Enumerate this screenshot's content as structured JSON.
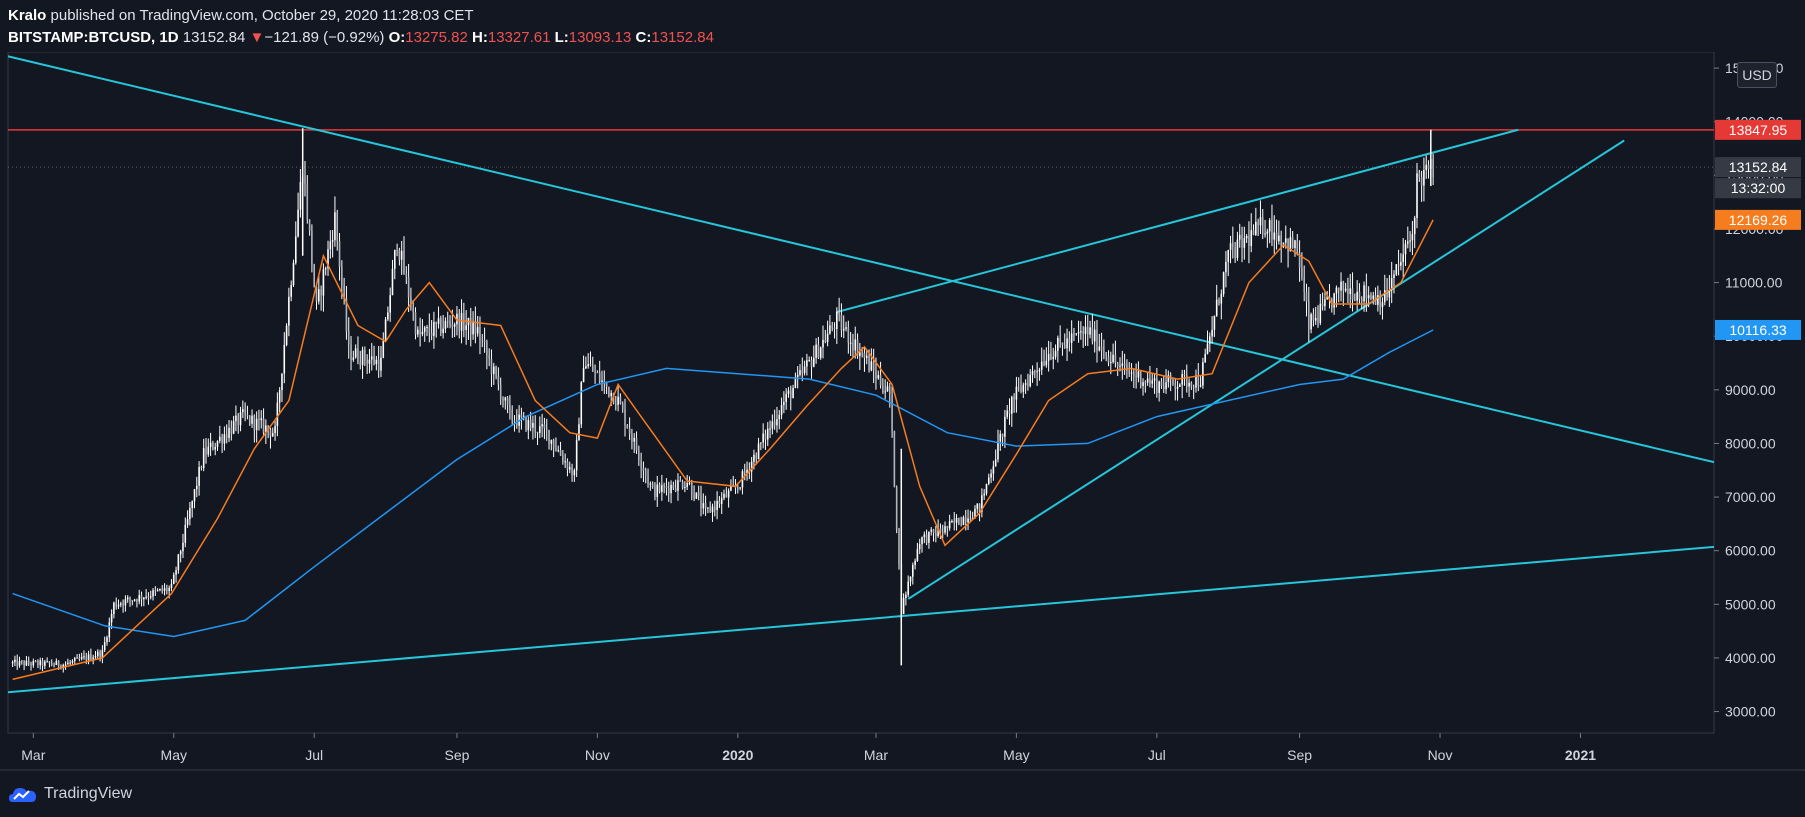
{
  "header": {
    "author": "Kralo",
    "published_text": "published on TradingView.com, October 29, 2020 11:28:03 CET",
    "symbol": "BITSTAMP:BTCUSD, 1D",
    "last": "13152.84",
    "change_arrow": "▼",
    "change": "−121.89 (−0.92%)",
    "ohlc": {
      "o_label": "O:",
      "o": "13275.82",
      "h_label": "H:",
      "h": "13327.61",
      "l_label": "L:",
      "l": "13093.13",
      "c_label": "C:",
      "c": "13152.84"
    }
  },
  "currency_button": "USD",
  "footer": {
    "brand": "TradingView"
  },
  "colors": {
    "background": "#131722",
    "candle": "#ffffff",
    "ma_short": "#f57c1f",
    "ma_long": "#2196f3",
    "trendline": "#26c6da",
    "resistance": "#e53935",
    "grid_text": "#d1d4dc"
  },
  "chart_data": {
    "type": "line",
    "ylim": [
      2600,
      15300
    ],
    "y_ticks": [
      "3000.00",
      "4000.00",
      "5000.00",
      "6000.00",
      "7000.00",
      "8000.00",
      "9000.00",
      "10000.00",
      "11000.00",
      "12000.00",
      "13000.00",
      "14000.00",
      "15000.00"
    ],
    "x_ticks": [
      {
        "label": "Mar",
        "date": "2019-03-01"
      },
      {
        "label": "May",
        "date": "2019-05-01"
      },
      {
        "label": "Jul",
        "date": "2019-07-01"
      },
      {
        "label": "Sep",
        "date": "2019-09-01"
      },
      {
        "label": "Nov",
        "date": "2019-11-01"
      },
      {
        "label": "2020",
        "date": "2020-01-01"
      },
      {
        "label": "Mar",
        "date": "2020-03-01"
      },
      {
        "label": "May",
        "date": "2020-05-01"
      },
      {
        "label": "Jul",
        "date": "2020-07-01"
      },
      {
        "label": "Sep",
        "date": "2020-09-01"
      },
      {
        "label": "Nov",
        "date": "2020-11-01"
      },
      {
        "label": "2021",
        "date": "2021-01-01"
      }
    ],
    "price_keypoints": [
      [
        "2019-02-20",
        3900
      ],
      [
        "2019-03-15",
        3880
      ],
      [
        "2019-03-31",
        4100
      ],
      [
        "2019-04-05",
        5000
      ],
      [
        "2019-04-30",
        5300
      ],
      [
        "2019-05-14",
        7800
      ],
      [
        "2019-05-31",
        8500
      ],
      [
        "2019-06-14",
        8200
      ],
      [
        "2019-06-26",
        13200
      ],
      [
        "2019-07-02",
        10500
      ],
      [
        "2019-07-10",
        12200
      ],
      [
        "2019-07-16",
        9700
      ],
      [
        "2019-07-30",
        9500
      ],
      [
        "2019-08-06",
        11800
      ],
      [
        "2019-08-15",
        10000
      ],
      [
        "2019-09-01",
        10300
      ],
      [
        "2019-09-10",
        10100
      ],
      [
        "2019-09-24",
        8500
      ],
      [
        "2019-10-10",
        8200
      ],
      [
        "2019-10-22",
        7400
      ],
      [
        "2019-10-26",
        9550
      ],
      [
        "2019-11-10",
        8800
      ],
      [
        "2019-11-25",
        7100
      ],
      [
        "2019-12-10",
        7300
      ],
      [
        "2019-12-18",
        6700
      ],
      [
        "2020-01-01",
        7200
      ],
      [
        "2020-01-20",
        8700
      ],
      [
        "2020-02-13",
        10300
      ],
      [
        "2020-02-25",
        9600
      ],
      [
        "2020-03-07",
        8900
      ],
      [
        "2020-03-12",
        4900
      ],
      [
        "2020-03-20",
        6200
      ],
      [
        "2020-03-31",
        6400
      ],
      [
        "2020-04-15",
        6800
      ],
      [
        "2020-04-29",
        8800
      ],
      [
        "2020-05-15",
        9700
      ],
      [
        "2020-06-01",
        10100
      ],
      [
        "2020-06-15",
        9400
      ],
      [
        "2020-07-01",
        9100
      ],
      [
        "2020-07-20",
        9200
      ],
      [
        "2020-08-01",
        11500
      ],
      [
        "2020-08-17",
        12100
      ],
      [
        "2020-08-31",
        11600
      ],
      [
        "2020-09-05",
        10200
      ],
      [
        "2020-09-20",
        10900
      ],
      [
        "2020-10-08",
        10700
      ],
      [
        "2020-10-20",
        11900
      ],
      [
        "2020-10-22",
        12900
      ],
      [
        "2020-10-29",
        13152
      ]
    ],
    "wicks": [
      {
        "date": "2019-06-26",
        "high": 13880,
        "low": 11500
      },
      {
        "date": "2020-03-12",
        "high": 7900,
        "low": 3860
      },
      {
        "date": "2020-10-28",
        "high": 13850,
        "low": 12800
      }
    ],
    "ma_short": [
      [
        "2019-02-20",
        3600
      ],
      [
        "2019-03-31",
        4000
      ],
      [
        "2019-04-30",
        5200
      ],
      [
        "2019-05-20",
        6600
      ],
      [
        "2019-06-05",
        7900
      ],
      [
        "2019-06-20",
        8800
      ],
      [
        "2019-07-05",
        11500
      ],
      [
        "2019-07-20",
        10200
      ],
      [
        "2019-08-01",
        9900
      ],
      [
        "2019-08-10",
        10500
      ],
      [
        "2019-08-20",
        11000
      ],
      [
        "2019-09-01",
        10300
      ],
      [
        "2019-09-20",
        10200
      ],
      [
        "2019-10-05",
        8800
      ],
      [
        "2019-10-20",
        8200
      ],
      [
        "2019-11-01",
        8100
      ],
      [
        "2019-11-10",
        9100
      ],
      [
        "2019-11-25",
        8200
      ],
      [
        "2019-12-10",
        7300
      ],
      [
        "2019-12-31",
        7200
      ],
      [
        "2020-01-15",
        7900
      ],
      [
        "2020-01-31",
        8700
      ],
      [
        "2020-02-15",
        9400
      ],
      [
        "2020-02-25",
        9800
      ],
      [
        "2020-03-08",
        9100
      ],
      [
        "2020-03-20",
        7200
      ],
      [
        "2020-03-31",
        6100
      ],
      [
        "2020-04-15",
        6700
      ],
      [
        "2020-05-01",
        7800
      ],
      [
        "2020-05-15",
        8800
      ],
      [
        "2020-06-01",
        9300
      ],
      [
        "2020-06-20",
        9400
      ],
      [
        "2020-07-10",
        9200
      ],
      [
        "2020-07-25",
        9300
      ],
      [
        "2020-08-10",
        11000
      ],
      [
        "2020-08-25",
        11700
      ],
      [
        "2020-09-05",
        11400
      ],
      [
        "2020-09-15",
        10600
      ],
      [
        "2020-10-01",
        10600
      ],
      [
        "2020-10-15",
        11000
      ],
      [
        "2020-10-29",
        12169
      ]
    ],
    "ma_long": [
      [
        "2019-02-20",
        5200
      ],
      [
        "2019-04-01",
        4600
      ],
      [
        "2019-05-01",
        4400
      ],
      [
        "2019-06-01",
        4700
      ],
      [
        "2019-07-01",
        5700
      ],
      [
        "2019-08-01",
        6700
      ],
      [
        "2019-09-01",
        7700
      ],
      [
        "2019-10-01",
        8500
      ],
      [
        "2019-11-01",
        9100
      ],
      [
        "2019-12-01",
        9400
      ],
      [
        "2020-01-01",
        9300
      ],
      [
        "2020-02-01",
        9200
      ],
      [
        "2020-03-01",
        8900
      ],
      [
        "2020-04-01",
        8200
      ],
      [
        "2020-05-01",
        7950
      ],
      [
        "2020-06-01",
        8000
      ],
      [
        "2020-07-01",
        8500
      ],
      [
        "2020-08-01",
        8800
      ],
      [
        "2020-09-01",
        9100
      ],
      [
        "2020-09-20",
        9200
      ],
      [
        "2020-10-10",
        9700
      ],
      [
        "2020-10-29",
        10116
      ]
    ],
    "trendlines": [
      {
        "from": [
          "2019-02-15",
          15250
        ],
        "to": [
          "2021-02-28",
          7650
        ]
      },
      {
        "from": [
          "2019-02-15",
          3350
        ],
        "to": [
          "2021-02-28",
          6070
        ]
      },
      {
        "from": [
          "2020-02-13",
          10450
        ],
        "to": [
          "2020-12-05",
          13850
        ]
      },
      {
        "from": [
          "2020-03-15",
          5100
        ],
        "to": [
          "2021-01-20",
          13650
        ]
      }
    ],
    "resistance_line": 13847.95,
    "price_labels": [
      {
        "value": "13847.95",
        "price": 13847.95,
        "bg": "#e53935",
        "fg": "#ffffff"
      },
      {
        "value": "13152.84",
        "price": 13152.84,
        "bg": "#363a45",
        "fg": "#ffffff"
      },
      {
        "value": "13:32:00",
        "price": 12760,
        "bg": "#363a45",
        "fg": "#ffffff"
      },
      {
        "value": "12169.26",
        "price": 12169.26,
        "bg": "#f57c1f",
        "fg": "#ffffff"
      },
      {
        "value": "10116.33",
        "price": 10116.33,
        "bg": "#2196f3",
        "fg": "#ffffff"
      }
    ]
  }
}
